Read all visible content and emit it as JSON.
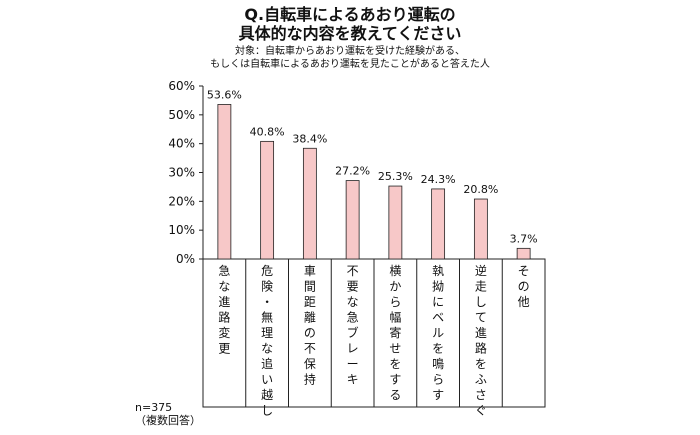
{
  "chart_data": {
    "type": "bar",
    "title_lines": [
      "Q.自転車によるあおり運転の",
      "具体的な内容を教えてください"
    ],
    "subtitle_lines": [
      "対象：自転車からあおり運転を受けた経験がある、",
      "もしくは自転車によるあおり運転を見たことがあると答えた人"
    ],
    "categories": [
      "急な進路変更",
      "危険・無理な追い越し",
      "車間距離の不保持",
      "不要な急ブレーキ",
      "横から幅寄せをする",
      "執拗にベルを鳴らす",
      "逆走して進路をふさぐ",
      "その他"
    ],
    "values": [
      53.6,
      40.8,
      38.4,
      27.2,
      25.3,
      24.3,
      20.8,
      3.7
    ],
    "value_labels": [
      "53.6%",
      "40.8%",
      "38.4%",
      "27.2%",
      "25.3%",
      "24.3%",
      "20.8%",
      "3.7%"
    ],
    "yticks": [
      "0%",
      "10%",
      "20%",
      "30%",
      "40%",
      "50%",
      "60%"
    ],
    "ylim": [
      0,
      60
    ],
    "xlabel": "",
    "ylabel": "",
    "grid": false,
    "bar_color": "#f7c8c8",
    "bar_border": "#222222",
    "sample_note": "n=375",
    "multi_answer_note": "（複数回答）"
  }
}
